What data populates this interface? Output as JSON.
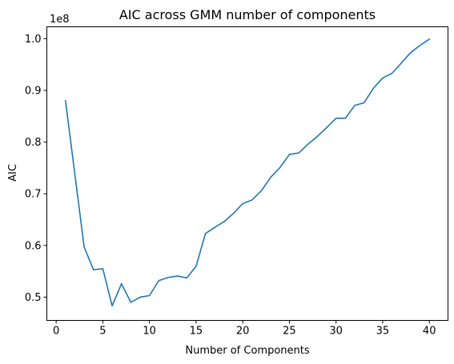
{
  "chart_data": {
    "type": "line",
    "title": "AIC across GMM number of components",
    "xlabel": "Number of Components",
    "ylabel": "AIC",
    "y_offset_label": "1e8",
    "xlim": [
      -1,
      42
    ],
    "ylim": [
      0.455,
      1.023
    ],
    "x_ticks": [
      0,
      5,
      10,
      15,
      20,
      25,
      30,
      35,
      40
    ],
    "x_tick_labels": [
      "0",
      "5",
      "10",
      "15",
      "20",
      "25",
      "30",
      "35",
      "40"
    ],
    "y_ticks": [
      0.5,
      0.6,
      0.7,
      0.8,
      0.9,
      1.0
    ],
    "y_tick_labels": [
      "0.5",
      "0.6",
      "0.7",
      "0.8",
      "0.9",
      "1.0"
    ],
    "grid": false,
    "series": [
      {
        "color": "#1f77b4",
        "x": [
          1,
          2,
          3,
          4,
          5,
          6,
          7,
          8,
          9,
          10,
          11,
          12,
          13,
          14,
          15,
          16,
          17,
          18,
          19,
          20,
          21,
          22,
          23,
          24,
          25,
          26,
          27,
          28,
          29,
          30,
          31,
          32,
          33,
          34,
          35,
          36,
          37,
          38,
          39,
          40
        ],
        "y": [
          0.88,
          0.738,
          0.597,
          0.553,
          0.555,
          0.483,
          0.526,
          0.49,
          0.5,
          0.503,
          0.532,
          0.538,
          0.541,
          0.537,
          0.56,
          0.623,
          0.635,
          0.646,
          0.662,
          0.681,
          0.688,
          0.706,
          0.732,
          0.751,
          0.776,
          0.779,
          0.796,
          0.811,
          0.828,
          0.846,
          0.846,
          0.871,
          0.876,
          0.904,
          0.924,
          0.933,
          0.953,
          0.973,
          0.987,
          0.999
        ]
      }
    ]
  }
}
